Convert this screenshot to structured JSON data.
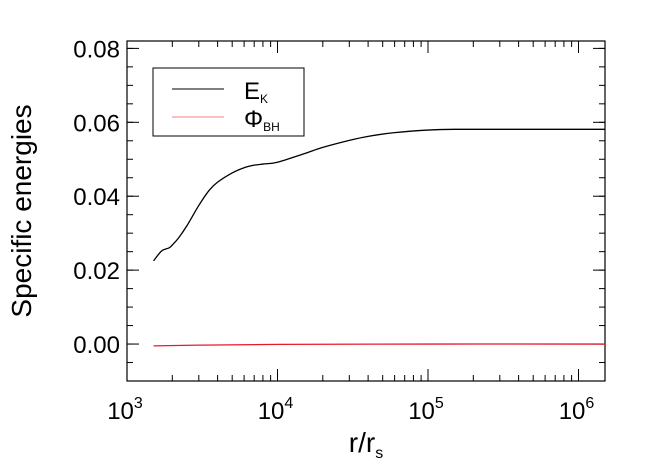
{
  "chart_data": {
    "type": "line",
    "title": "",
    "xlabel_main": "r/r",
    "xlabel_sub": "s",
    "ylabel": "Specific energies",
    "x_scale": "log",
    "xlim": [
      1000,
      1500000
    ],
    "ylim": [
      -0.01,
      0.082
    ],
    "x_ticks": [
      {
        "value": 1000,
        "base": "10",
        "exp": "3"
      },
      {
        "value": 10000,
        "base": "10",
        "exp": "4"
      },
      {
        "value": 100000,
        "base": "10",
        "exp": "5"
      },
      {
        "value": 1000000,
        "base": "10",
        "exp": "6"
      }
    ],
    "y_ticks": [
      {
        "value": 0.0,
        "label": "0.00"
      },
      {
        "value": 0.02,
        "label": "0.02"
      },
      {
        "value": 0.04,
        "label": "0.04"
      },
      {
        "value": 0.06,
        "label": "0.06"
      },
      {
        "value": 0.08,
        "label": "0.08"
      }
    ],
    "grid": false,
    "legend_placement": "top-left",
    "series": [
      {
        "key": "ek",
        "name_main": "E",
        "name_sub": "K",
        "color": "#000000",
        "x": [
          1500,
          1700,
          1900,
          2000,
          2200,
          2500,
          3000,
          3500,
          4000,
          5000,
          6000,
          7000,
          8000,
          10000,
          15000,
          20000,
          30000,
          40000,
          60000,
          100000,
          150000,
          300000,
          1000000,
          1500000
        ],
        "y": [
          0.0225,
          0.0252,
          0.026,
          0.0268,
          0.0287,
          0.032,
          0.0375,
          0.0415,
          0.0438,
          0.0463,
          0.0477,
          0.0484,
          0.0487,
          0.0492,
          0.0515,
          0.0532,
          0.0551,
          0.0562,
          0.0572,
          0.0579,
          0.0581,
          0.0581,
          0.0581,
          0.0581
        ]
      },
      {
        "key": "phi",
        "name_main": "Φ",
        "name_sub": "BH",
        "color": "#e8182d",
        "x": [
          1500,
          3000,
          10000,
          100000,
          1000000,
          1500000
        ],
        "y": [
          -0.0005,
          -0.0003,
          -0.0001,
          0.0,
          0.0,
          0.0
        ]
      }
    ]
  }
}
